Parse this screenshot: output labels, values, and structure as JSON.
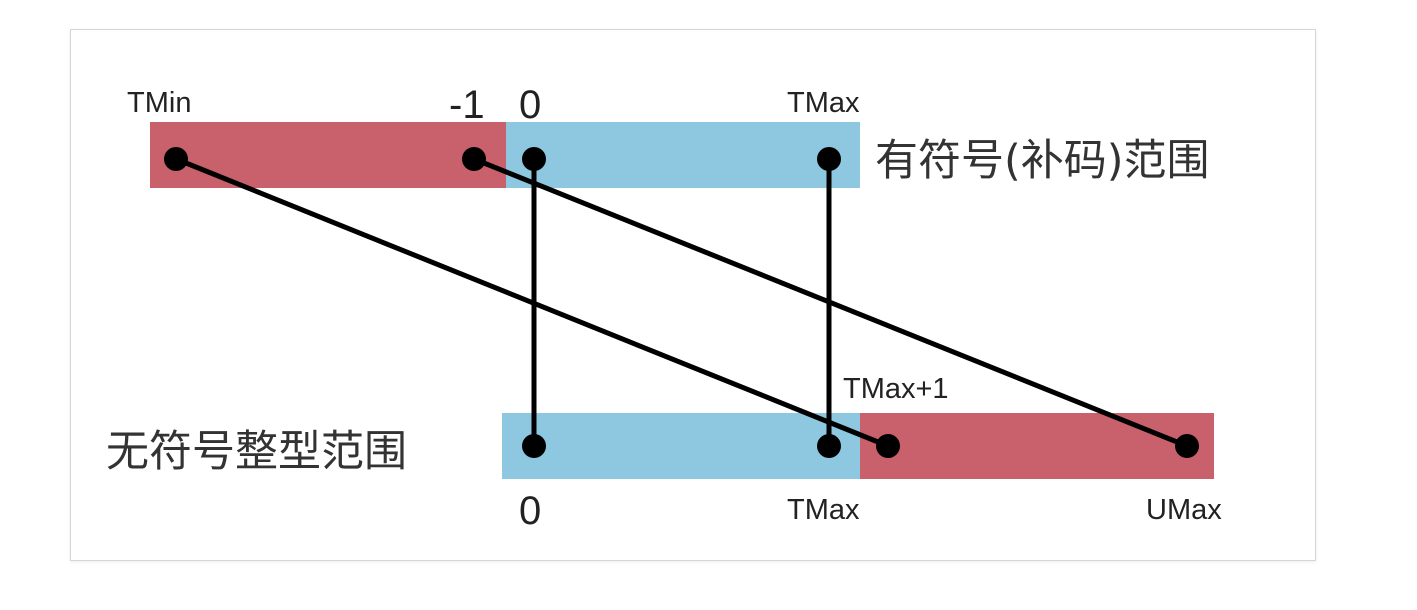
{
  "colors": {
    "negative_segment": "#c8616c",
    "positive_segment": "#8ec7e0",
    "connector": "#000000",
    "frame_border": "#d6d6d6"
  },
  "signed_range": {
    "title": "有符号(补码)范围",
    "labels": {
      "tmin": "TMin",
      "minus_one": "-1",
      "zero": "0",
      "tmax": "TMax"
    }
  },
  "unsigned_range": {
    "title": "无符号整型范围",
    "labels": {
      "zero": "0",
      "tmax": "TMax",
      "tmax_plus_one": "TMax+1",
      "umax": "UMax"
    }
  },
  "mappings": [
    {
      "from": "TMin",
      "to": "TMax+1"
    },
    {
      "from": "-1",
      "to": "UMax"
    },
    {
      "from": "0",
      "to": "0"
    },
    {
      "from": "TMax",
      "to": "TMax"
    }
  ]
}
